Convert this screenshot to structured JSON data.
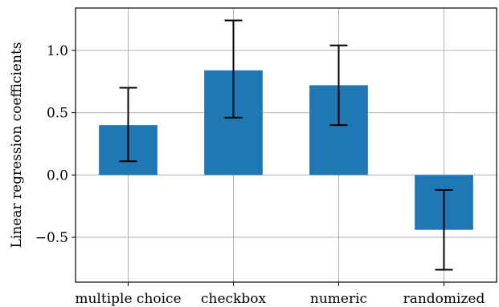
{
  "chart_data": {
    "type": "bar",
    "categories": [
      "multiple choice",
      "checkbox",
      "numeric",
      "randomized"
    ],
    "values": [
      0.4,
      0.84,
      0.72,
      -0.44
    ],
    "error_low": [
      0.11,
      0.46,
      0.4,
      -0.76
    ],
    "error_high": [
      0.7,
      1.24,
      1.04,
      -0.12
    ],
    "title": "",
    "xlabel": "",
    "ylabel": "Linear regression coefficients",
    "ylim": [
      -0.86,
      1.34
    ],
    "yticks": [
      -0.5,
      0.0,
      0.5,
      1.0
    ],
    "ytick_labels": [
      "−0.5",
      "0.0",
      "0.5",
      "1.0"
    ],
    "grid": true,
    "bar_color": "#1f77b4"
  }
}
